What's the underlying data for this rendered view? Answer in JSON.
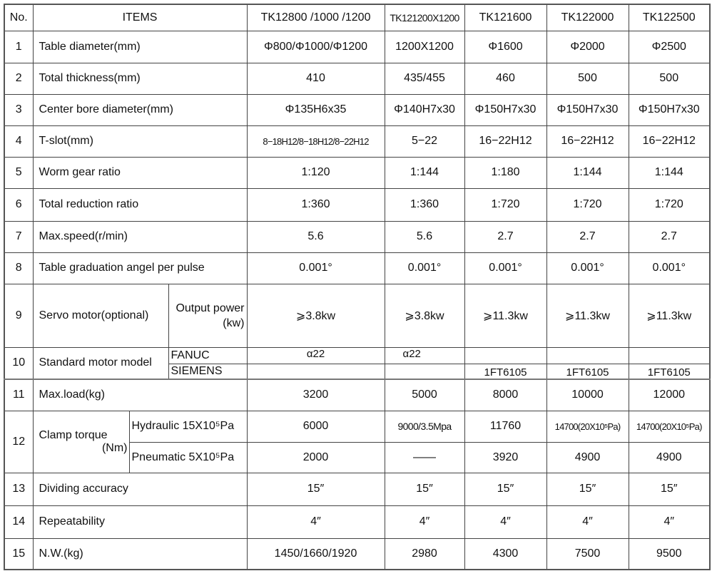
{
  "header": {
    "no": "No.",
    "items": "ITEMS",
    "models": [
      "TK12800  /1000  /1200",
      "TK121200X1200",
      "TK121600",
      "TK122000",
      "TK122500"
    ]
  },
  "rows": [
    {
      "no": "1",
      "item": "Table diameter(mm)",
      "values": [
        "Φ800/Φ1000/Φ1200",
        "1200X1200",
        "Φ1600",
        "Φ2000",
        "Φ2500"
      ]
    },
    {
      "no": "2",
      "item": "Total thickness(mm)",
      "values": [
        "410",
        "435/455",
        "460",
        "500",
        "500"
      ]
    },
    {
      "no": "3",
      "item": "Center bore diameter(mm)",
      "values": [
        "Φ135H6x35",
        "Φ140H7x30",
        "Φ150H7x30",
        "Φ150H7x30",
        "Φ150H7x30"
      ]
    },
    {
      "no": "4",
      "item": "T-slot(mm)",
      "values": [
        "8−18H12/8−18H12/8−22H12",
        "5−22",
        "16−22H12",
        "16−22H12",
        "16−22H12"
      ]
    },
    {
      "no": "5",
      "item": "Worm gear ratio",
      "values": [
        "1:120",
        "1:144",
        "1:180",
        "1:144",
        "1:144"
      ]
    },
    {
      "no": "6",
      "item": "Total reduction ratio",
      "values": [
        "1:360",
        "1:360",
        "1:720",
        "1:720",
        "1:720"
      ]
    },
    {
      "no": "7",
      "item": "Max.speed(r/min)",
      "values": [
        "5.6",
        "5.6",
        "2.7",
        "2.7",
        "2.7"
      ]
    },
    {
      "no": "8",
      "item": "Table graduation angel per pulse",
      "values": [
        "0.001°",
        "0.001°",
        "0.001°",
        "0.001°",
        "0.001°"
      ]
    },
    {
      "no": "9",
      "item": "Servo motor(optional)",
      "sub": [
        "Output power",
        "(kw)"
      ],
      "values": [
        "⩾3.8kw",
        "⩾3.8kw",
        "⩾11.3kw",
        "⩾11.3kw",
        "⩾11.3kw"
      ]
    },
    {
      "no": "10",
      "item": "Standard motor model",
      "subrows": [
        {
          "label": "FANUC",
          "values": [
            "α22",
            "α22",
            "",
            "",
            ""
          ]
        },
        {
          "label": "SIEMENS",
          "values": [
            "",
            "",
            "1FT6105",
            "1FT6105",
            "1FT6105"
          ]
        }
      ]
    },
    {
      "no": "11",
      "item": "Max.load(kg)",
      "values": [
        "3200",
        "5000",
        "8000",
        "10000",
        "12000"
      ]
    },
    {
      "no": "12",
      "item": "Clamp torque",
      "item2": "(Nm)",
      "subrows": [
        {
          "label": "Hydraulic 15X10⁵Pa",
          "values": [
            "6000",
            "9000/3.5Mpa",
            "11760",
            "14700(20X10⁵Pa)",
            "14700(20X10⁵Pa)"
          ]
        },
        {
          "label": "Pneumatic 5X10⁵Pa",
          "values": [
            "2000",
            "——",
            "3920",
            "4900",
            "4900"
          ]
        }
      ]
    },
    {
      "no": "13",
      "item": "Dividing accuracy",
      "values": [
        "15″",
        "15″",
        "15″",
        "15″",
        "15″"
      ]
    },
    {
      "no": "14",
      "item": "Repeatability",
      "values": [
        "4″",
        "4″",
        "4″",
        "4″",
        "4″"
      ]
    },
    {
      "no": "15",
      "item": "N.W.(kg)",
      "values": [
        "1450/1660/1920",
        "2980",
        "4300",
        "7500",
        "9500"
      ]
    }
  ]
}
